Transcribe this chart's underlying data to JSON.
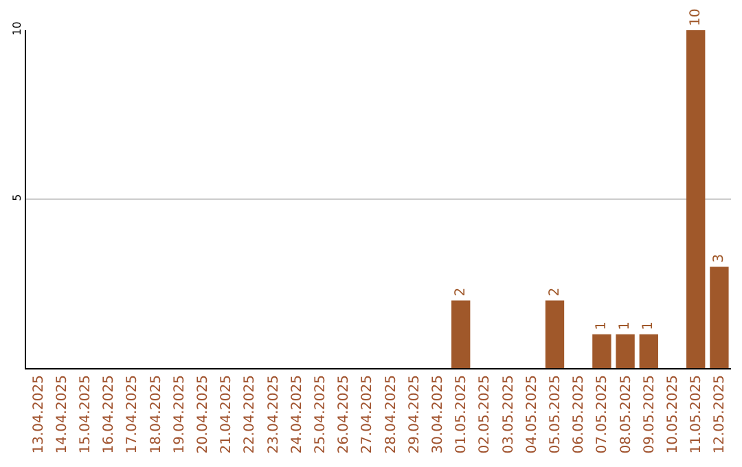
{
  "chart_data": {
    "type": "bar",
    "categories": [
      "13.04.2025",
      "14.04.2025",
      "15.04.2025",
      "16.04.2025",
      "17.04.2025",
      "18.04.2025",
      "19.04.2025",
      "20.04.2025",
      "21.04.2025",
      "22.04.2025",
      "23.04.2025",
      "24.04.2025",
      "25.04.2025",
      "26.04.2025",
      "27.04.2025",
      "28.04.2025",
      "29.04.2025",
      "30.04.2025",
      "01.05.2025",
      "02.05.2025",
      "03.05.2025",
      "04.05.2025",
      "05.05.2025",
      "06.05.2025",
      "07.05.2025",
      "08.05.2025",
      "09.05.2025",
      "10.05.2025",
      "11.05.2025",
      "12.05.2025"
    ],
    "values": [
      0,
      0,
      0,
      0,
      0,
      0,
      0,
      0,
      0,
      0,
      0,
      0,
      0,
      0,
      0,
      0,
      0,
      0,
      2,
      0,
      0,
      0,
      2,
      0,
      1,
      1,
      1,
      0,
      10,
      3
    ],
    "value_labels": [
      null,
      null,
      null,
      null,
      null,
      null,
      null,
      null,
      null,
      null,
      null,
      null,
      null,
      null,
      null,
      null,
      null,
      null,
      "2",
      null,
      null,
      null,
      "2",
      null,
      "1",
      "1",
      "1",
      null,
      "10",
      "3"
    ],
    "color": "#a0582a",
    "ylim": [
      0,
      10
    ],
    "yticks": [
      5,
      10
    ],
    "grid": "y"
  }
}
